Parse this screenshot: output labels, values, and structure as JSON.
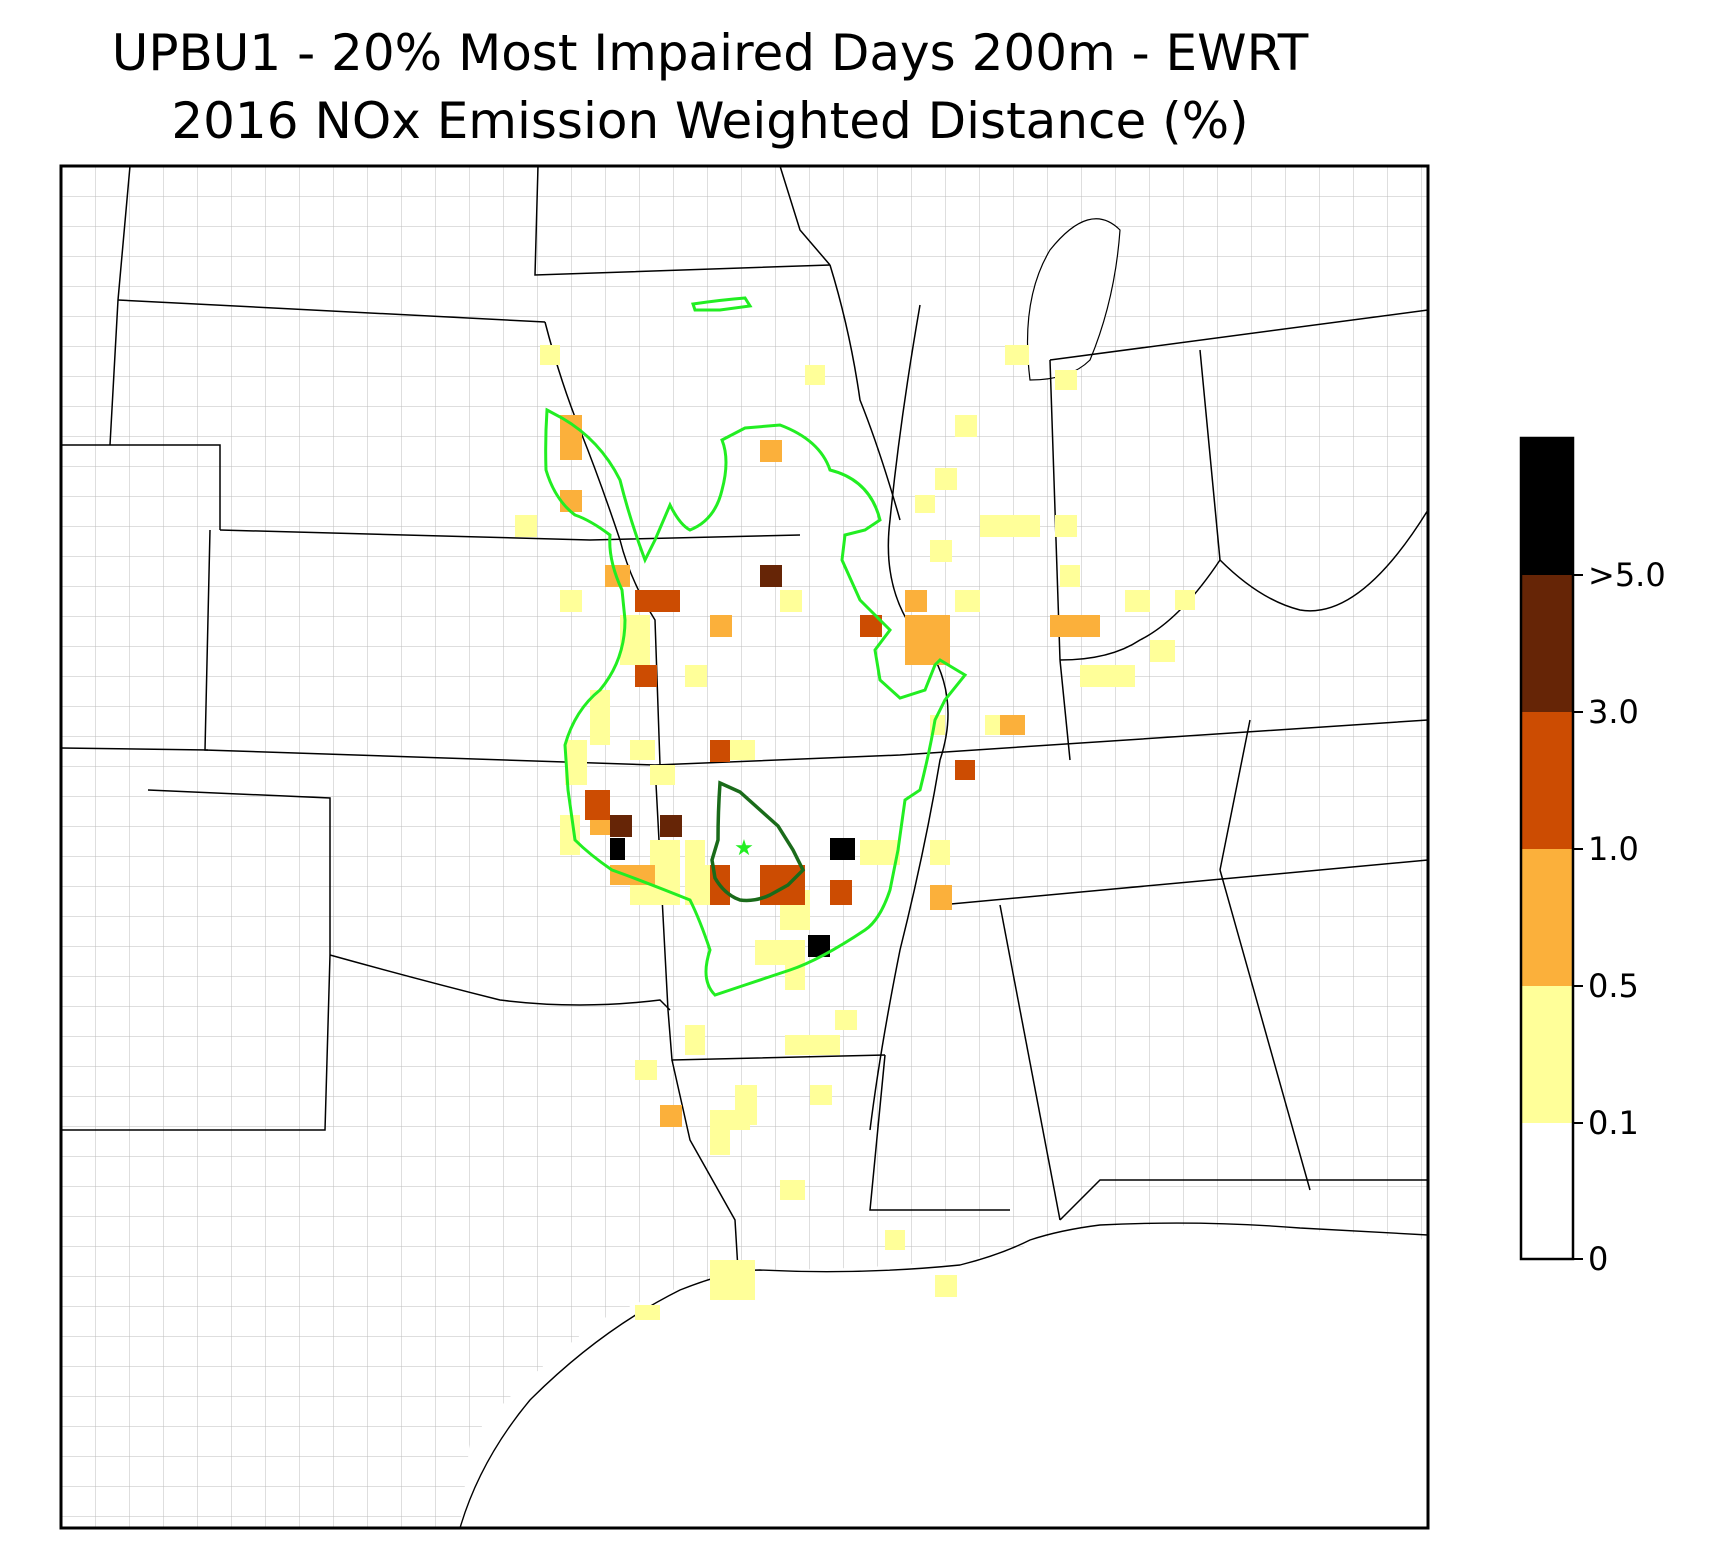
{
  "title": {
    "line1": "UPBU1 - 20% Most Impaired Days 200m - EWRT",
    "line2": "2016 NOx Emission Weighted Distance (%)"
  },
  "colorbar": {
    "tick_labels": [
      "0",
      "0.1",
      "0.5",
      "1.0",
      "3.0",
      ">5.0"
    ],
    "bins": [
      {
        "range": "0-0.1",
        "color": "#ffffff"
      },
      {
        "range": "0.1-0.5",
        "color": "#ffff99"
      },
      {
        "range": "0.5-1.0",
        "color": "#fbb03b"
      },
      {
        "range": "1.0-3.0",
        "color": "#cc4c02"
      },
      {
        "range": "3.0-5.0",
        "color": "#662506"
      },
      {
        "range": ">5.0",
        "color": "#000000"
      }
    ]
  },
  "map": {
    "region": "South-central United States",
    "layers": [
      "state-boundaries",
      "county-boundaries",
      "coastline"
    ],
    "site_marker": "star",
    "site_color": "#22ee22",
    "outer_contour_color": "#22ee22",
    "inner_contour_color": "#1a6b1a"
  }
}
